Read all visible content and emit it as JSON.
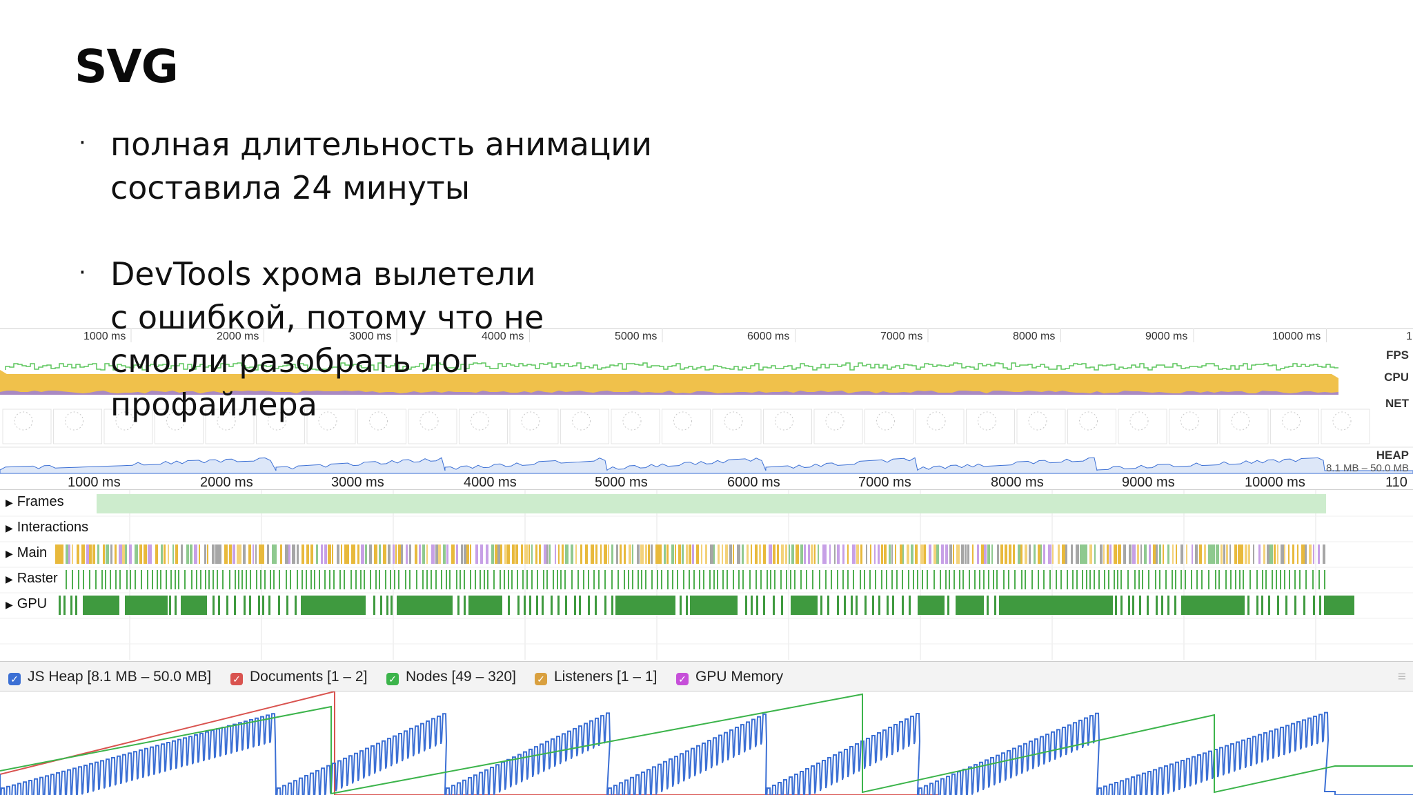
{
  "slide": {
    "title": "SVG",
    "bullets": [
      {
        "lines": [
          "полная длительность анимации",
          "составила 24 минуты"
        ]
      },
      {
        "lines": [
          "DevTools хрома вылетели",
          "с ошибкой, потому что не",
          "смогли разобрать лог",
          "профайлера"
        ]
      }
    ]
  },
  "overview": {
    "ticks": [
      "1000 ms",
      "2000 ms",
      "3000 ms",
      "4000 ms",
      "5000 ms",
      "6000 ms",
      "7000 ms",
      "8000 ms",
      "9000 ms",
      "10000 ms",
      "1"
    ],
    "fps_label": "FPS",
    "cpu_label": "CPU",
    "net_label": "NET",
    "heap_label": "HEAP",
    "heap_range": "8.1 MB – 50.0 MB"
  },
  "timeline": {
    "ticks": [
      "1000 ms",
      "2000 ms",
      "3000 ms",
      "4000 ms",
      "5000 ms",
      "6000 ms",
      "7000 ms",
      "8000 ms",
      "9000 ms",
      "10000 ms",
      "110"
    ],
    "tracks": [
      {
        "label": "Frames"
      },
      {
        "label": "Interactions"
      },
      {
        "label": "Main"
      },
      {
        "label": "Raster"
      },
      {
        "label": "GPU"
      }
    ]
  },
  "legend": {
    "items": [
      {
        "label": "JS Heap [8.1 MB – 50.0 MB]",
        "color": "#3b6fd4",
        "checked": true
      },
      {
        "label": "Documents [1 – 2]",
        "color": "#d9534f",
        "checked": true
      },
      {
        "label": "Nodes [49 – 320]",
        "color": "#3cb44b",
        "checked": true
      },
      {
        "label": "Listeners [1 – 1]",
        "color": "#d9a03f",
        "checked": true
      },
      {
        "label": "GPU Memory",
        "color": "#c64fd9",
        "checked": true
      }
    ]
  },
  "colors": {
    "fps": "#5cc55c",
    "cpu_scripting": "#f0c14b",
    "cpu_rendering": "#9c7fd8",
    "heap": "#3b6fd4",
    "documents": "#d9534f",
    "nodes": "#3cb44b",
    "main_scripting": "#e8b93c",
    "raster": "#4fae4f",
    "gpu": "#3f9a3f",
    "frames": "#cdeccd"
  }
}
